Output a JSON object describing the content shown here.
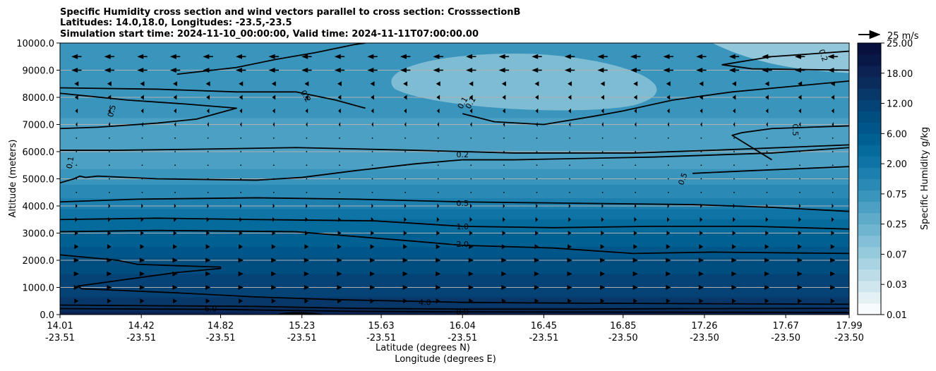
{
  "chart_data": {
    "type": "heatmap",
    "title_lines": [
      "Specific Humidity cross section and wind vectors parallel to cross section: CrosssectionB",
      "Latitudes: 14.0,18.0, Longitudes: -23.5,-23.5",
      "Simulation start time: 2024-11-10_00:00:00, Valid time: 2024-11-11T07:00:00.00"
    ],
    "ylabel": "Altitude (meters)",
    "xlabel_lines": [
      "Latitude (degrees N)",
      "Longitude (degrees E)"
    ],
    "ylim": [
      0,
      10000
    ],
    "yticks": [
      "0.0",
      "1000.0",
      "2000.0",
      "3000.0",
      "4000.0",
      "5000.0",
      "6000.0",
      "7000.0",
      "8000.0",
      "9000.0",
      "10000.0"
    ],
    "xlim": [
      14.01,
      17.99
    ],
    "xticks": [
      {
        "lat": "14.01",
        "lon": "-23.51"
      },
      {
        "lat": "14.42",
        "lon": "-23.51"
      },
      {
        "lat": "14.82",
        "lon": "-23.51"
      },
      {
        "lat": "15.23",
        "lon": "-23.51"
      },
      {
        "lat": "15.63",
        "lon": "-23.51"
      },
      {
        "lat": "16.04",
        "lon": "-23.51"
      },
      {
        "lat": "16.45",
        "lon": "-23.51"
      },
      {
        "lat": "16.85",
        "lon": "-23.50"
      },
      {
        "lat": "17.26",
        "lon": "-23.50"
      },
      {
        "lat": "17.67",
        "lon": "-23.50"
      },
      {
        "lat": "17.99",
        "lon": "-23.50"
      }
    ],
    "grid": "horizontal",
    "colorbar": {
      "label": "Specific Humidity g/kg",
      "ticks": [
        "0.01",
        "0.03",
        "0.07",
        "0.25",
        "0.75",
        "2.00",
        "6.00",
        "12.00",
        "18.00",
        "25.00"
      ],
      "colors": [
        "#f7fbfd",
        "#e3f1f5",
        "#cfe6ee",
        "#bcdde8",
        "#a9d3e2",
        "#95c9dc",
        "#83bfd6",
        "#70b5d0",
        "#5eaac9",
        "#4ca0c3",
        "#3a95bd",
        "#2a8ab5",
        "#1c7fae",
        "#0f74a5",
        "#056a9c",
        "#006092",
        "#005689",
        "#004d80",
        "#054275",
        "#083769",
        "#0a2c5d",
        "#0b2252",
        "#081847",
        "#08103d"
      ]
    },
    "quiver_key": {
      "label": "25 m/s",
      "value": 25
    },
    "humidity_bands": [
      {
        "z": 0,
        "q": 12.0
      },
      {
        "z": 300,
        "q": 6.5
      },
      {
        "z": 700,
        "q": 4.8
      },
      {
        "z": 1500,
        "q": 3.6
      },
      {
        "z": 2200,
        "q": 2.4
      },
      {
        "z": 3000,
        "q": 1.3
      },
      {
        "z": 3600,
        "q": 0.9
      },
      {
        "z": 4200,
        "q": 0.55
      },
      {
        "z": 5000,
        "q": 0.3
      },
      {
        "z": 6000,
        "q": 0.2
      },
      {
        "z": 7000,
        "q": 0.25
      },
      {
        "z": 8000,
        "q": 0.3
      },
      {
        "z": 9000,
        "q": 0.35
      },
      {
        "z": 10000,
        "q": 0.3
      }
    ],
    "contours": [
      {
        "level": "0.1",
        "label_x": 14.06,
        "label_z": 5600,
        "label_rot": -80,
        "points": [
          [
            14.01,
            4850
          ],
          [
            14.08,
            5000
          ],
          [
            14.11,
            5100
          ],
          [
            14.14,
            5050
          ],
          [
            14.2,
            5100
          ],
          [
            14.5,
            5000
          ],
          [
            15.0,
            4950
          ],
          [
            15.23,
            5050
          ],
          [
            15.5,
            5300
          ],
          [
            15.8,
            5550
          ],
          [
            16.04,
            5700
          ],
          [
            16.3,
            5700
          ],
          [
            17.0,
            5800
          ],
          [
            17.6,
            5950
          ],
          [
            17.99,
            6150
          ]
        ]
      },
      {
        "level": "0.2",
        "label_x": 16.04,
        "label_z": 5900,
        "label_rot": 0,
        "points": [
          [
            14.01,
            6050
          ],
          [
            14.3,
            6050
          ],
          [
            14.8,
            6100
          ],
          [
            15.2,
            6150
          ],
          [
            15.8,
            6050
          ],
          [
            16.3,
            5950
          ],
          [
            16.9,
            5950
          ],
          [
            17.3,
            6050
          ],
          [
            17.99,
            6250
          ]
        ]
      },
      {
        "level": "0.5",
        "label_x": 16.04,
        "label_z": 4100,
        "label_rot": 0,
        "points": [
          [
            14.01,
            4150
          ],
          [
            14.4,
            4250
          ],
          [
            15.0,
            4300
          ],
          [
            15.5,
            4250
          ],
          [
            16.04,
            4150
          ],
          [
            16.6,
            4100
          ],
          [
            17.2,
            4050
          ],
          [
            17.6,
            3950
          ],
          [
            17.99,
            3800
          ]
        ]
      },
      {
        "level": "1.0",
        "label_x": 16.04,
        "label_z": 3250,
        "label_rot": 0,
        "points": [
          [
            14.01,
            3500
          ],
          [
            14.5,
            3550
          ],
          [
            15.0,
            3500
          ],
          [
            15.6,
            3450
          ],
          [
            16.04,
            3250
          ],
          [
            16.5,
            3200
          ],
          [
            17.0,
            3250
          ],
          [
            17.5,
            3250
          ],
          [
            17.99,
            3150
          ]
        ]
      },
      {
        "level": "2.0",
        "label_x": 16.04,
        "label_z": 2600,
        "label_rot": 0,
        "points": [
          [
            14.01,
            3050
          ],
          [
            14.5,
            3100
          ],
          [
            15.2,
            3050
          ],
          [
            15.8,
            2700
          ],
          [
            16.04,
            2550
          ],
          [
            16.5,
            2450
          ],
          [
            16.9,
            2250
          ],
          [
            17.3,
            2300
          ],
          [
            17.99,
            2250
          ]
        ]
      },
      {
        "level": "4.0",
        "label_x": 15.85,
        "label_z": 450,
        "label_rot": 0,
        "points": [
          [
            14.01,
            2200
          ],
          [
            14.3,
            2000
          ],
          [
            14.4,
            1850
          ],
          [
            14.6,
            1800
          ],
          [
            14.82,
            1750
          ],
          [
            14.82,
            1700
          ],
          [
            14.6,
            1550
          ],
          [
            14.3,
            1250
          ],
          [
            14.1,
            1050
          ],
          [
            14.12,
            950
          ],
          [
            14.6,
            800
          ],
          [
            15.0,
            650
          ],
          [
            15.4,
            550
          ],
          [
            16.04,
            450
          ],
          [
            16.6,
            420
          ],
          [
            17.3,
            400
          ],
          [
            17.99,
            380
          ]
        ]
      },
      {
        "level": "6.0",
        "label_x": 14.77,
        "label_z": 220,
        "label_rot": 0,
        "points": [
          [
            14.01,
            350
          ],
          [
            14.6,
            320
          ],
          [
            15.0,
            300
          ],
          [
            15.5,
            230
          ],
          [
            16.04,
            200
          ],
          [
            16.6,
            200
          ],
          [
            17.2,
            220
          ],
          [
            17.99,
            230
          ]
        ]
      },
      {
        "level": "8.0",
        "label_x": 16.04,
        "label_z": 110,
        "label_rot": 0,
        "points": [
          [
            14.01,
            220
          ],
          [
            14.8,
            190
          ],
          [
            15.2,
            150
          ],
          [
            15.5,
            120
          ],
          [
            16.04,
            100
          ],
          [
            17.0,
            90
          ],
          [
            17.99,
            80
          ]
        ]
      },
      {
        "level": "0.5",
        "label_x": 14.27,
        "label_z": 7500,
        "label_rot": -75,
        "points": [
          [
            14.01,
            6850
          ],
          [
            14.2,
            6900
          ],
          [
            14.5,
            7050
          ],
          [
            14.7,
            7200
          ],
          [
            14.9,
            7600
          ],
          [
            14.65,
            7750
          ],
          [
            14.35,
            7900
          ],
          [
            14.01,
            8150
          ]
        ]
      },
      {
        "level": "0.2",
        "label_x": 15.25,
        "label_z": 8050,
        "label_rot": 60,
        "points": [
          [
            14.01,
            8350
          ],
          [
            14.5,
            8300
          ],
          [
            14.9,
            8200
          ],
          [
            15.2,
            8200
          ],
          [
            15.4,
            7900
          ],
          [
            15.55,
            7600
          ]
        ]
      },
      {
        "level": "0.1",
        "label_x": 16.08,
        "label_z": 7800,
        "label_rot": -60,
        "points": [
          [
            14.6,
            8850
          ],
          [
            14.9,
            9100
          ],
          [
            15.1,
            9400
          ],
          [
            15.3,
            9650
          ],
          [
            15.5,
            9950
          ],
          [
            15.55,
            10000
          ]
        ]
      },
      {
        "level": "0.1",
        "label_x": 16.04,
        "label_z": 7800,
        "label_rot": -60,
        "points": [
          [
            16.04,
            7400
          ],
          [
            16.2,
            7100
          ],
          [
            16.45,
            7000
          ],
          [
            16.7,
            7300
          ],
          [
            16.85,
            7500
          ],
          [
            17.1,
            7900
          ],
          [
            17.4,
            8200
          ],
          [
            17.99,
            8600
          ]
        ]
      },
      {
        "level": "0.5",
        "label_x": 17.72,
        "label_z": 6800,
        "label_rot": 90,
        "points": [
          [
            17.6,
            5700
          ],
          [
            17.4,
            6600
          ],
          [
            17.45,
            6700
          ],
          [
            17.6,
            6850
          ],
          [
            17.99,
            6950
          ]
        ]
      },
      {
        "level": "0.5",
        "label_x": 17.15,
        "label_z": 5000,
        "label_rot": -70,
        "points": [
          [
            17.2,
            5200
          ],
          [
            17.5,
            5300
          ],
          [
            17.99,
            5450
          ]
        ]
      },
      {
        "level": "0.2",
        "label_x": 17.86,
        "label_z": 9550,
        "label_rot": 70,
        "points": [
          [
            17.99,
            9700
          ],
          [
            17.8,
            9600
          ],
          [
            17.6,
            9500
          ],
          [
            17.35,
            9200
          ],
          [
            17.5,
            9050
          ],
          [
            17.99,
            9000
          ]
        ]
      }
    ],
    "wind_u_by_level": [
      {
        "z": 9500,
        "u": -12
      },
      {
        "z": 9000,
        "u": -12
      },
      {
        "z": 8500,
        "u": -5
      },
      {
        "z": 8000,
        "u": -4
      },
      {
        "z": 7500,
        "u": -3
      },
      {
        "z": 7000,
        "u": -2
      },
      {
        "z": 6500,
        "u": -1
      },
      {
        "z": 6000,
        "u": 0
      },
      {
        "z": 5500,
        "u": 0
      },
      {
        "z": 5000,
        "u": 0
      },
      {
        "z": 4500,
        "u": 1
      },
      {
        "z": 4000,
        "u": 2
      },
      {
        "z": 3500,
        "u": 3
      },
      {
        "z": 3000,
        "u": 4
      },
      {
        "z": 2500,
        "u": 5
      },
      {
        "z": 2000,
        "u": 6
      },
      {
        "z": 1500,
        "u": 6
      },
      {
        "z": 1000,
        "u": 6
      },
      {
        "z": 500,
        "u": 5
      }
    ]
  }
}
